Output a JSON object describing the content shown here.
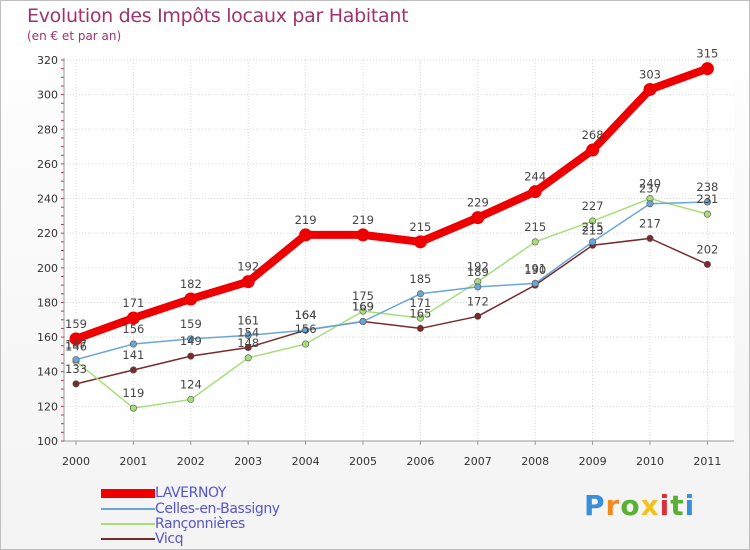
{
  "title": "Evolution des Impôts locaux par Habitant",
  "subtitle": "(en € et par an)",
  "brand": {
    "letters": [
      "P",
      "r",
      "o",
      "x",
      "i",
      "t",
      "i"
    ],
    "colors": [
      "#3a8fd9",
      "#f28a1f",
      "#5ab031",
      "#f2c31f",
      "#d9303a",
      "#5ab031",
      "#3a8fd9"
    ]
  },
  "chart_data": {
    "type": "line",
    "x": [
      "2000",
      "2001",
      "2002",
      "2003",
      "2004",
      "2005",
      "2006",
      "2007",
      "2008",
      "2009",
      "2010",
      "2011"
    ],
    "ylim": [
      100,
      320
    ],
    "yticks": [
      100,
      120,
      140,
      160,
      180,
      200,
      220,
      240,
      260,
      280,
      300,
      320
    ],
    "grid": true,
    "legend": "bottom-left",
    "series": [
      {
        "name": "LAVERNOY",
        "color": "#ee0000",
        "values": [
          159,
          171,
          182,
          192,
          219,
          219,
          215,
          229,
          244,
          268,
          303,
          315
        ],
        "labels": [
          "159",
          "171",
          "182",
          "192",
          "219",
          "219",
          "215",
          "229",
          "244",
          "268",
          "303",
          "315"
        ]
      },
      {
        "name": "Celles-en-Bassigny",
        "color": "#6aa6d8",
        "values": [
          147,
          156,
          159,
          161,
          164,
          169,
          185,
          189,
          191,
          215,
          237,
          238
        ],
        "labels": [
          "147",
          "156",
          "159",
          "161",
          "164",
          "169",
          "185",
          "189",
          "191",
          "215",
          "237",
          "238"
        ]
      },
      {
        "name": "Rançonnières",
        "color": "#a6df7a",
        "values": [
          146,
          119,
          124,
          148,
          156,
          175,
          171,
          192,
          215,
          227,
          240,
          231
        ],
        "labels": [
          "146",
          "119",
          "124",
          "148",
          "156",
          "175",
          "171",
          "192",
          "215",
          "227",
          "240",
          "231"
        ]
      },
      {
        "name": "Vicq",
        "color": "#7a2a2a",
        "values": [
          133,
          141,
          149,
          154,
          164,
          169,
          165,
          172,
          190,
          213,
          217,
          202
        ],
        "labels": [
          "133",
          "141",
          "149",
          "154",
          "164",
          "169",
          "165",
          "172",
          "190",
          "213",
          "217",
          "202"
        ]
      }
    ]
  }
}
